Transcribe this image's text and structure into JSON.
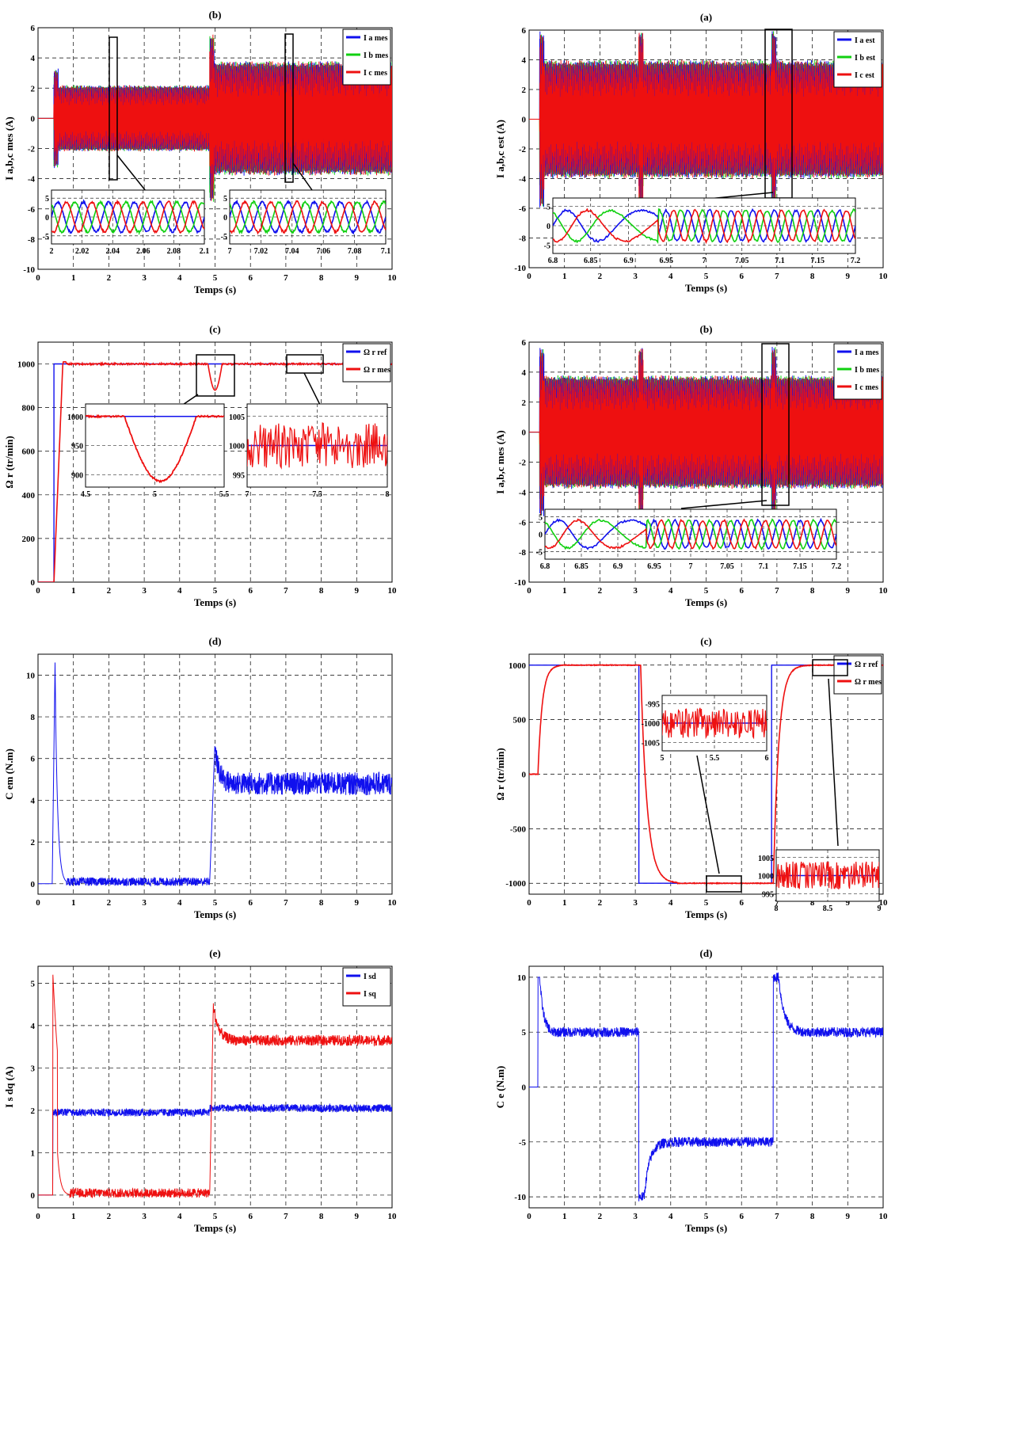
{
  "figure": {
    "xlabel": "Temps (s)",
    "colors": {
      "blue": "#1010ee",
      "green": "#10d010",
      "red": "#ee1010",
      "grid": "#000000"
    }
  },
  "chart_data": [
    {
      "id": "L-b",
      "panel_label": "(b)",
      "type": "line",
      "ylabel": "I a,b,c mes (A)",
      "xlim": [
        0,
        10
      ],
      "ylim": [
        -10,
        6
      ],
      "xticks": [
        0,
        1,
        2,
        3,
        4,
        5,
        6,
        7,
        8,
        9,
        10
      ],
      "yticks": [
        -10,
        -8,
        -6,
        -4,
        -2,
        0,
        2,
        4,
        6
      ],
      "legend": [
        "I a mes",
        "I b mes",
        "I c mes"
      ],
      "signal": "abc",
      "amp_steps": [
        [
          0,
          0
        ],
        [
          0.45,
          2.2
        ],
        [
          4.85,
          3.8
        ]
      ],
      "insets": [
        {
          "xticks": [
            "2",
            "2.02",
            "2.04",
            "2.06",
            "2.08",
            "2.1"
          ],
          "yticks": [
            "5",
            "0",
            "-5"
          ],
          "sig": "abc3"
        },
        {
          "xticks": [
            "7",
            "7.02",
            "7.04",
            "7.06",
            "7.08",
            "7.1"
          ],
          "yticks": [
            "5",
            "0",
            "-5"
          ],
          "sig": "abc3"
        }
      ]
    },
    {
      "id": "R-a",
      "panel_label": "(a)",
      "type": "line",
      "ylabel": "I a,b,c est (A)",
      "xlim": [
        0,
        10
      ],
      "ylim": [
        -10,
        6
      ],
      "xticks": [
        0,
        1,
        2,
        3,
        4,
        5,
        6,
        7,
        8,
        9,
        10
      ],
      "yticks": [
        -10,
        -8,
        -6,
        -4,
        -2,
        0,
        2,
        4,
        6
      ],
      "legend": [
        "I a est",
        "I b est",
        "I c est"
      ],
      "signal": "abc",
      "amp_steps": [
        [
          0,
          0
        ],
        [
          0.3,
          4
        ],
        [
          3.1,
          4
        ],
        [
          6.85,
          4
        ]
      ],
      "insets": [
        {
          "xticks": [
            "6.8",
            "6.85",
            "6.9",
            "6.95",
            "7",
            "7.05",
            "7.1",
            "7.15",
            "7.2"
          ],
          "yticks": [
            "5",
            "0",
            "-5"
          ],
          "sig": "abcrev"
        }
      ]
    },
    {
      "id": "L-c",
      "panel_label": "(c)",
      "type": "line",
      "ylabel": "Ω r (tr/min)",
      "xlim": [
        0,
        10
      ],
      "ylim": [
        0,
        1100
      ],
      "xticks": [
        0,
        1,
        2,
        3,
        4,
        5,
        6,
        7,
        8,
        9,
        10
      ],
      "yticks": [
        0,
        200,
        400,
        600,
        800,
        1000
      ],
      "legend": [
        "Ω r ref",
        "Ω r mes"
      ],
      "signal": "speed1",
      "insets": [
        {
          "xticks": [
            "4.5",
            "5",
            "5.5"
          ],
          "yticks": [
            "1000",
            "950",
            "900"
          ],
          "sig": "dip"
        },
        {
          "xticks": [
            "7",
            "7.5",
            "8"
          ],
          "yticks": [
            "1005",
            "1000",
            "995"
          ],
          "sig": "noise"
        }
      ]
    },
    {
      "id": "R-b",
      "panel_label": "(b)",
      "type": "line",
      "ylabel": "I a,b,c mes (A)",
      "xlim": [
        0,
        10
      ],
      "ylim": [
        -10,
        6
      ],
      "xticks": [
        0,
        1,
        2,
        3,
        4,
        5,
        6,
        7,
        8,
        9,
        10
      ],
      "yticks": [
        -10,
        -8,
        -6,
        -4,
        -2,
        0,
        2,
        4,
        6
      ],
      "legend": [
        "I a mes",
        "I b mes",
        "I c mes"
      ],
      "signal": "abc",
      "amp_steps": [
        [
          0,
          0
        ],
        [
          0.3,
          3.8
        ],
        [
          3.1,
          3.8
        ],
        [
          6.85,
          3.8
        ]
      ],
      "insets": [
        {
          "xticks": [
            "6.8",
            "6.85",
            "6.9",
            "6.95",
            "7",
            "7.05",
            "7.1",
            "7.15",
            "7.2"
          ],
          "yticks": [
            "5",
            "0",
            "-5"
          ],
          "sig": "abcrev"
        }
      ]
    },
    {
      "id": "L-d",
      "panel_label": "(d)",
      "type": "line",
      "ylabel": "C em (N.m)",
      "xlim": [
        0,
        10
      ],
      "ylim": [
        -0.5,
        11
      ],
      "xticks": [
        0,
        1,
        2,
        3,
        4,
        5,
        6,
        7,
        8,
        9,
        10
      ],
      "yticks": [
        0,
        2,
        4,
        6,
        8,
        10
      ],
      "legend": [],
      "signal": "torque1"
    },
    {
      "id": "R-c",
      "panel_label": "(c)",
      "type": "line",
      "ylabel": "Ω r (tr/min)",
      "xlim": [
        0,
        10
      ],
      "ylim": [
        -1100,
        1100
      ],
      "xticks": [
        0,
        1,
        2,
        3,
        4,
        5,
        6,
        7,
        8,
        9,
        10
      ],
      "yticks": [
        -1000,
        -500,
        0,
        500,
        1000
      ],
      "legend": [
        "Ω r ref",
        "Ω r mes"
      ],
      "signal": "speed2",
      "insets": [
        {
          "xticks": [
            "5",
            "5.5",
            "6"
          ],
          "yticks": [
            "-995",
            "-1000",
            "-1005"
          ],
          "sig": "noise"
        },
        {
          "xticks": [
            "8",
            "8.5",
            "9"
          ],
          "yticks": [
            "1005",
            "1000",
            "995"
          ],
          "sig": "noise"
        }
      ]
    },
    {
      "id": "L-e",
      "panel_label": "(e)",
      "type": "line",
      "ylabel": "I s dq (A)",
      "xlim": [
        0,
        10
      ],
      "ylim": [
        -0.3,
        5.4
      ],
      "xticks": [
        0,
        1,
        2,
        3,
        4,
        5,
        6,
        7,
        8,
        9,
        10
      ],
      "yticks": [
        0,
        1,
        2,
        3,
        4,
        5
      ],
      "legend": [
        "I sd",
        "I sq"
      ],
      "signal": "dq"
    },
    {
      "id": "R-d",
      "panel_label": "(d)",
      "type": "line",
      "ylabel": "C e (N.m)",
      "xlim": [
        0,
        10
      ],
      "ylim": [
        -11,
        11
      ],
      "xticks": [
        0,
        1,
        2,
        3,
        4,
        5,
        6,
        7,
        8,
        9,
        10
      ],
      "yticks": [
        -10,
        -5,
        0,
        5,
        10
      ],
      "legend": [],
      "signal": "torque2"
    }
  ]
}
